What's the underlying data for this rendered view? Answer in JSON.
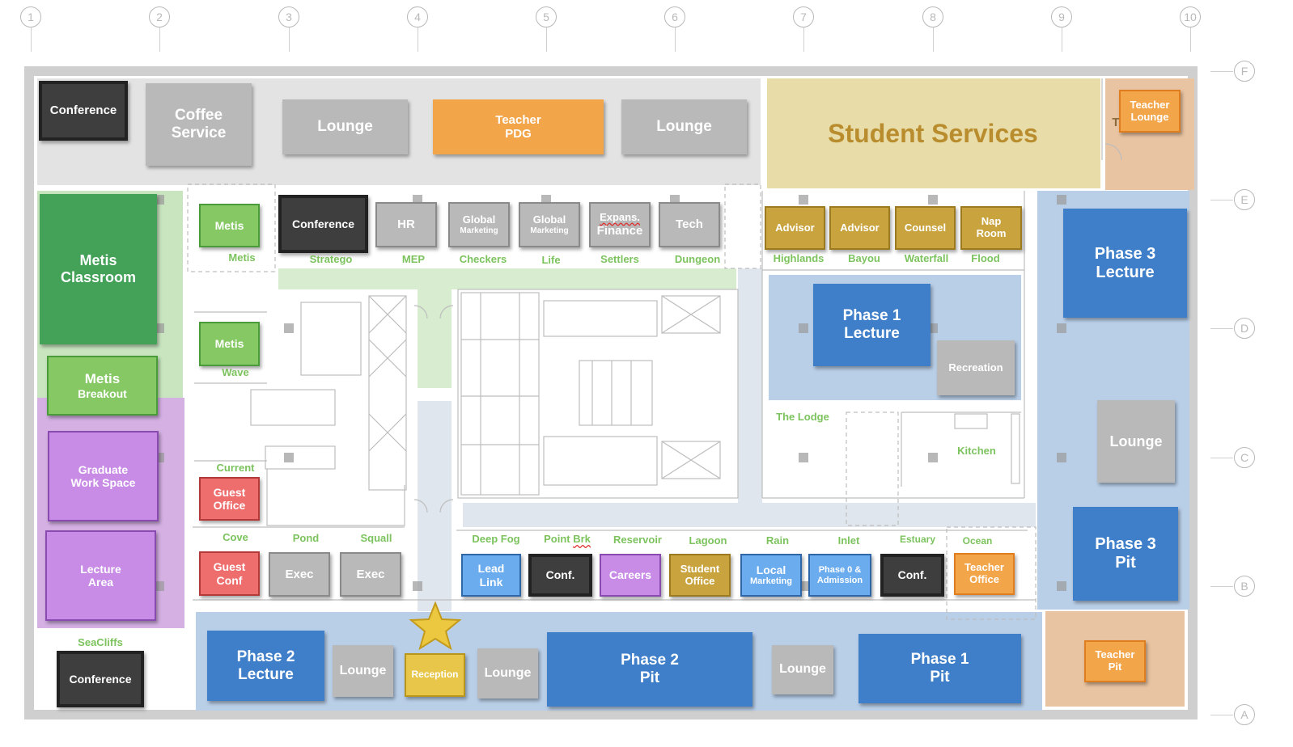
{
  "colors": {
    "gray_room": "#b9b9b9",
    "dark_room": "#3e3e3e",
    "orange_room": "#f3a54a",
    "student_services": "#e8dda8",
    "student_services_text": "#b98c2e",
    "gold_room": "#c9a43e",
    "green_dark": "#43a158",
    "green_light": "#86c964",
    "green_label": "#7cc35e",
    "purple_room": "#c88ce6",
    "blue_room": "#3f7fc9",
    "blue_light_room": "#6aacee",
    "red_room": "#ee6e6e",
    "yellow_room": "#e7c64a",
    "blue_zone": "#b9cfe8",
    "gray_zone": "#e3e3e3",
    "peach_zone": "#e9c4a2"
  },
  "grid": {
    "columns": [
      "1",
      "2",
      "3",
      "4",
      "5",
      "6",
      "7",
      "8",
      "9",
      "10"
    ],
    "rows": [
      "F",
      "E",
      "D",
      "C",
      "B",
      "A"
    ]
  },
  "rooms": {
    "conference_top": "Conference",
    "coffee": "Coffee\nService",
    "lounge_top_1": "Lounge",
    "teacher_pdg": "Teacher\nPDG",
    "lounge_top_2": "Lounge",
    "student_services": "Student Services",
    "teacher_lounge": "Teacher\nLounge",
    "metis_classroom": "Metis\nClassroom",
    "metis_breakout_1": "Metis",
    "metis_breakout_2": "Breakout",
    "graduate": "Graduate\nWork Space",
    "lecture_area": "Lecture\nArea",
    "conference_bottom": "Conference",
    "metis_small": "Metis",
    "conference_mid": "Conference",
    "hr": "HR",
    "global_1_a": "Global",
    "global_1_b": "Marketing",
    "global_2_a": "Global",
    "global_2_b": "Marketing",
    "expans_a": "Expans.",
    "expans_b": "Finance",
    "tech": "Tech",
    "advisor_1": "Advisor",
    "advisor_2": "Advisor",
    "counsel": "Counsel",
    "nap": "Nap\nRoom",
    "phase1_lecture": "Phase 1\nLecture",
    "recreation": "Recreation",
    "phase3_lecture": "Phase 3\nLecture",
    "lounge_right": "Lounge",
    "phase3_pit": "Phase 3\nPit",
    "teacher_pit": "Teacher\nPit",
    "metis_wave": "Metis",
    "guest_office": "Guest\nOffice",
    "guest_conf": "Guest\nConf",
    "exec_1": "Exec",
    "exec_2": "Exec",
    "lead_link": "Lead\nLink",
    "conf_1": "Conf.",
    "careers": "Careers",
    "student_office": "Student\nOffice",
    "local_a": "Local",
    "local_b": "Marketing",
    "phase0_a": "Phase 0 &",
    "phase0_b": "Admission",
    "conf_2": "Conf.",
    "teacher_office": "Teacher\nOffice",
    "phase2_lecture": "Phase 2\nLecture",
    "lounge_bottom_1": "Lounge",
    "reception": "Reception",
    "lounge_bottom_2": "Lounge",
    "phase2_pit": "Phase 2\nPit",
    "lounge_bottom_3": "Lounge",
    "phase1_pit": "Phase 1\nPit",
    "teacher_lounge_partial": "T"
  },
  "labels": {
    "metis": "Metis",
    "stratego": "Stratego",
    "mep": "MEP",
    "checkers": "Checkers",
    "life": "Life",
    "settlers": "Settlers",
    "dungeon": "Dungeon",
    "highlands": "Highlands",
    "bayou": "Bayou",
    "waterfall": "Waterfall",
    "flood": "Flood",
    "wave": "Wave",
    "the_lodge": "The Lodge",
    "kitchen": "Kitchen",
    "current": "Current",
    "cove": "Cove",
    "pond": "Pond",
    "squall": "Squall",
    "deep_fog": "Deep Fog",
    "point_brk_a": "Point ",
    "point_brk_b": "Brk",
    "reservoir": "Reservoir",
    "lagoon": "Lagoon",
    "rain": "Rain",
    "inlet": "Inlet",
    "estuary": "Estuary",
    "ocean": "Ocean",
    "seacliffs": "SeaCliffs"
  }
}
